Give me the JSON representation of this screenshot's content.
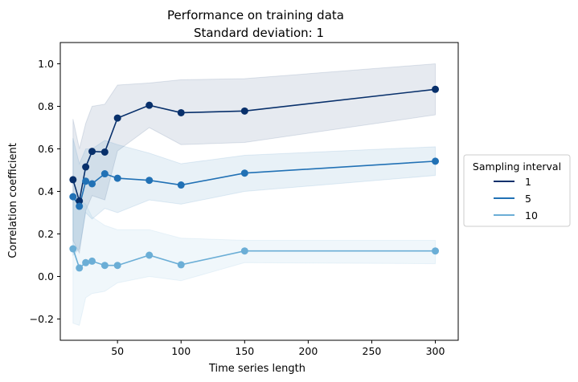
{
  "chart_data": {
    "type": "line",
    "title": "Performance on training data",
    "subtitle": "Standard deviation: 1",
    "xlabel": "Time series length",
    "ylabel": "Correlation coefficient",
    "xlim": [
      5,
      318
    ],
    "ylim": [
      -0.3,
      1.1
    ],
    "xticks": [
      50,
      100,
      150,
      200,
      250,
      300
    ],
    "yticks": [
      -0.2,
      0.0,
      0.2,
      0.4,
      0.6,
      0.8,
      1.0
    ],
    "xtick_labels": [
      "50",
      "100",
      "150",
      "200",
      "250",
      "300"
    ],
    "ytick_labels": [
      "−0.2",
      "0.0",
      "0.2",
      "0.4",
      "0.6",
      "0.8",
      "1.0"
    ],
    "grid": false,
    "legend": {
      "title": "Sampling interval",
      "placement": "outside-right"
    },
    "series": [
      {
        "name": "1",
        "color": "#08306b",
        "x": [
          15,
          20,
          25,
          30,
          40,
          50,
          75,
          100,
          150,
          300
        ],
        "y": [
          0.455,
          0.355,
          0.515,
          0.588,
          0.585,
          0.745,
          0.805,
          0.77,
          0.778,
          0.88
        ],
        "upper": [
          0.74,
          0.6,
          0.72,
          0.8,
          0.81,
          0.9,
          0.91,
          0.925,
          0.93,
          1.0
        ],
        "lower": [
          0.17,
          0.11,
          0.31,
          0.38,
          0.36,
          0.59,
          0.7,
          0.62,
          0.63,
          0.76
        ]
      },
      {
        "name": "5",
        "color": "#2171b5",
        "x": [
          15,
          20,
          25,
          30,
          40,
          50,
          75,
          100,
          150,
          300
        ],
        "y": [
          0.375,
          0.33,
          0.448,
          0.436,
          0.483,
          0.462,
          0.452,
          0.43,
          0.486,
          0.542
        ],
        "upper": [
          0.65,
          0.53,
          0.6,
          0.6,
          0.64,
          0.62,
          0.58,
          0.53,
          0.57,
          0.61
        ],
        "lower": [
          0.1,
          0.13,
          0.3,
          0.27,
          0.32,
          0.3,
          0.36,
          0.34,
          0.4,
          0.475
        ]
      },
      {
        "name": "10",
        "color": "#6baed6",
        "x": [
          15,
          20,
          25,
          30,
          40,
          50,
          75,
          100,
          150,
          300
        ],
        "y": [
          0.13,
          0.04,
          0.065,
          0.072,
          0.052,
          0.052,
          0.1,
          0.055,
          0.12,
          0.12
        ],
        "upper": [
          0.36,
          0.36,
          0.34,
          0.28,
          0.24,
          0.22,
          0.22,
          0.18,
          0.17,
          0.17
        ],
        "lower": [
          -0.22,
          -0.23,
          -0.1,
          -0.08,
          -0.07,
          -0.03,
          0.0,
          -0.02,
          0.065,
          0.06
        ]
      }
    ]
  }
}
